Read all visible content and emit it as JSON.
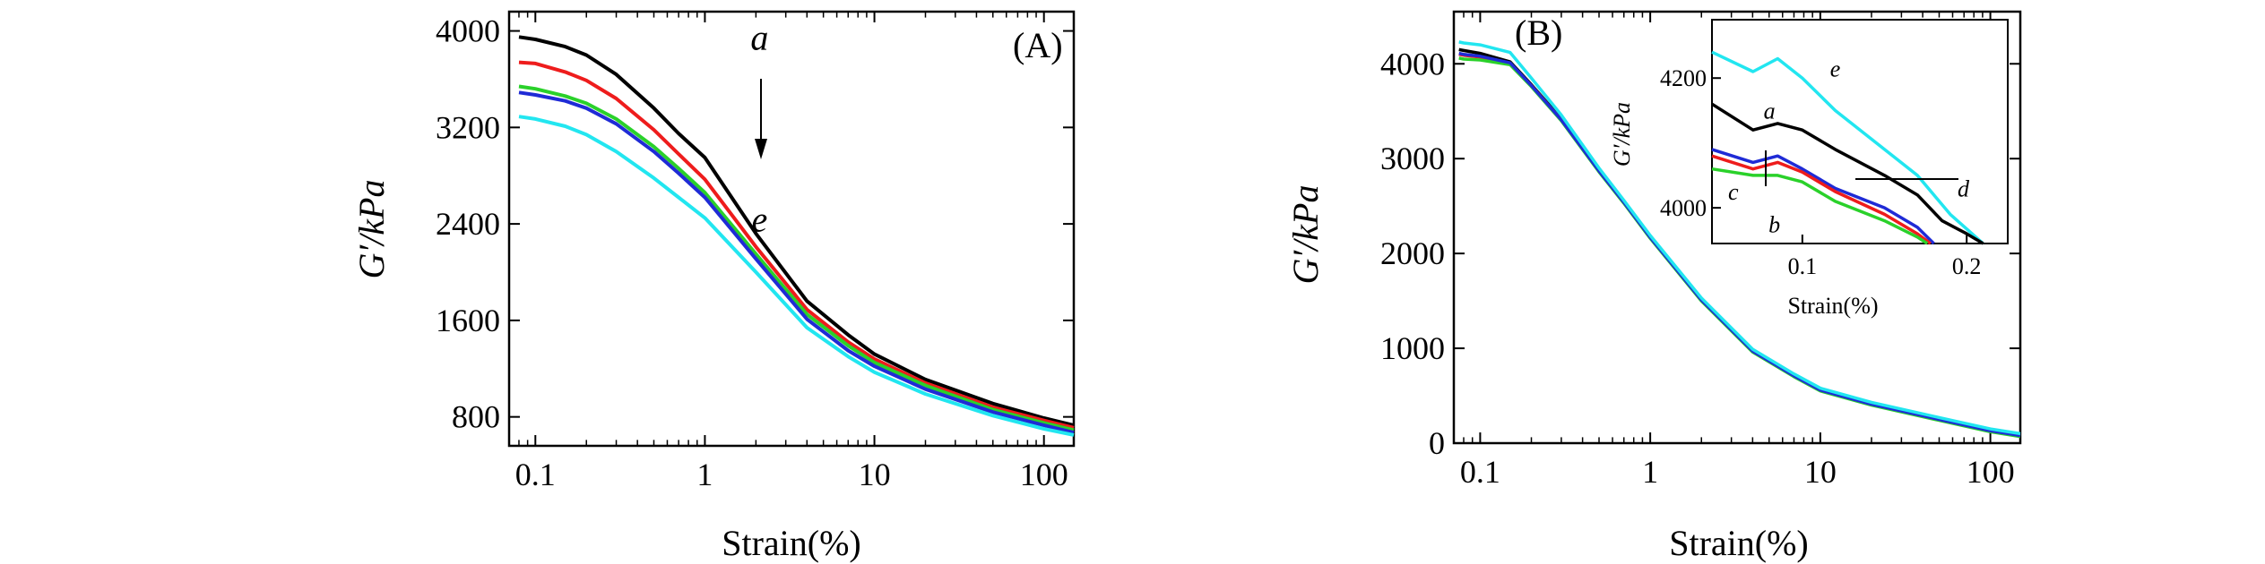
{
  "chart_data": [
    {
      "panel_label": "(A)",
      "type": "line",
      "xlabel": "Strain(%)",
      "ylabel": "G′/kPa",
      "xscale": "log",
      "xlim": [
        0.07,
        150
      ],
      "ylim": [
        560,
        4160
      ],
      "xticks": [
        {
          "value": 0.1,
          "label": "0.1"
        },
        {
          "value": 1,
          "label": "1"
        },
        {
          "value": 10,
          "label": "10"
        },
        {
          "value": 100,
          "label": "100"
        }
      ],
      "yticks": [
        {
          "value": 800,
          "label": "800"
        },
        {
          "value": 1600,
          "label": "1600"
        },
        {
          "value": 2400,
          "label": "2400"
        },
        {
          "value": 3200,
          "label": "3200"
        },
        {
          "value": 4000,
          "label": "4000"
        }
      ],
      "grid": false,
      "legend": "none",
      "series": [
        {
          "color": "#000000",
          "x": [
            0.08,
            0.1,
            0.15,
            0.2,
            0.3,
            0.5,
            0.7,
            1,
            2,
            4,
            7,
            10,
            20,
            50,
            100,
            150
          ],
          "y": [
            3950,
            3930,
            3870,
            3800,
            3640,
            3360,
            3150,
            2950,
            2320,
            1760,
            1480,
            1320,
            1110,
            910,
            790,
            730
          ]
        },
        {
          "color": "#ee1c1c",
          "x": [
            0.08,
            0.1,
            0.15,
            0.2,
            0.3,
            0.5,
            0.7,
            1,
            2,
            4,
            7,
            10,
            20,
            50,
            100,
            150
          ],
          "y": [
            3740,
            3730,
            3660,
            3590,
            3440,
            3180,
            2980,
            2770,
            2210,
            1690,
            1420,
            1280,
            1080,
            880,
            770,
            710
          ]
        },
        {
          "color": "#2ad12a",
          "x": [
            0.08,
            0.1,
            0.15,
            0.2,
            0.3,
            0.5,
            0.7,
            1,
            2,
            4,
            7,
            10,
            20,
            50,
            100,
            150
          ],
          "y": [
            3540,
            3520,
            3460,
            3400,
            3270,
            3040,
            2860,
            2660,
            2150,
            1650,
            1390,
            1250,
            1060,
            860,
            750,
            690
          ]
        },
        {
          "color": "#1f2bd6",
          "x": [
            0.08,
            0.1,
            0.15,
            0.2,
            0.3,
            0.5,
            0.7,
            1,
            2,
            4,
            7,
            10,
            20,
            50,
            100,
            150
          ],
          "y": [
            3490,
            3470,
            3420,
            3360,
            3230,
            3000,
            2820,
            2620,
            2110,
            1610,
            1350,
            1220,
            1030,
            840,
            730,
            670
          ]
        },
        {
          "color": "#22e6f0",
          "x": [
            0.08,
            0.1,
            0.15,
            0.2,
            0.3,
            0.5,
            0.7,
            1,
            2,
            4,
            7,
            10,
            20,
            50,
            100,
            150
          ],
          "y": [
            3290,
            3270,
            3210,
            3140,
            3000,
            2780,
            2620,
            2450,
            2000,
            1540,
            1300,
            1170,
            990,
            810,
            700,
            650
          ]
        }
      ],
      "annotations": [
        {
          "text": "a",
          "x": 2.1,
          "y": 3950
        },
        {
          "text": "e",
          "x": 2.1,
          "y": 2440
        }
      ]
    },
    {
      "panel_label": "(B)",
      "type": "line",
      "xlabel": "Strain(%)",
      "ylabel": "G′/kPa",
      "xscale": "log",
      "xlim": [
        0.07,
        150
      ],
      "ylim": [
        0,
        4550
      ],
      "xticks": [
        {
          "value": 0.1,
          "label": "0.1"
        },
        {
          "value": 1,
          "label": "1"
        },
        {
          "value": 10,
          "label": "10"
        },
        {
          "value": 100,
          "label": "100"
        }
      ],
      "yticks": [
        {
          "value": 0,
          "label": "0"
        },
        {
          "value": 1000,
          "label": "1000"
        },
        {
          "value": 2000,
          "label": "2000"
        },
        {
          "value": 3000,
          "label": "3000"
        },
        {
          "value": 4000,
          "label": "4000"
        }
      ],
      "grid": false,
      "legend": "none",
      "series": [
        {
          "color": "#000000",
          "x": [
            0.075,
            0.08,
            0.1,
            0.15,
            0.2,
            0.3,
            0.5,
            0.7,
            1,
            2,
            4,
            7,
            10,
            20,
            50,
            100,
            150
          ],
          "y": [
            4150,
            4140,
            4110,
            4020,
            3780,
            3420,
            2880,
            2550,
            2180,
            1520,
            980,
            720,
            570,
            420,
            260,
            140,
            90
          ]
        },
        {
          "color": "#ee1c1c",
          "x": [
            0.075,
            0.08,
            0.1,
            0.15,
            0.2,
            0.3,
            0.5,
            0.7,
            1,
            2,
            4,
            7,
            10,
            20,
            50,
            100,
            150
          ],
          "y": [
            4100,
            4090,
            4070,
            4000,
            3770,
            3410,
            2870,
            2540,
            2170,
            1510,
            970,
            710,
            560,
            410,
            250,
            130,
            80
          ]
        },
        {
          "color": "#2ad12a",
          "x": [
            0.075,
            0.08,
            0.1,
            0.15,
            0.2,
            0.3,
            0.5,
            0.7,
            1,
            2,
            4,
            7,
            10,
            20,
            50,
            100,
            150
          ],
          "y": [
            4060,
            4050,
            4040,
            3990,
            3760,
            3400,
            2860,
            2530,
            2160,
            1500,
            960,
            700,
            550,
            400,
            240,
            120,
            70
          ]
        },
        {
          "color": "#1f2bd6",
          "x": [
            0.075,
            0.08,
            0.1,
            0.15,
            0.2,
            0.3,
            0.5,
            0.7,
            1,
            2,
            4,
            7,
            10,
            20,
            50,
            100,
            150
          ],
          "y": [
            4110,
            4100,
            4080,
            4010,
            3770,
            3410,
            2870,
            2540,
            2170,
            1510,
            970,
            710,
            560,
            410,
            250,
            130,
            80
          ]
        },
        {
          "color": "#22e6f0",
          "x": [
            0.075,
            0.08,
            0.1,
            0.15,
            0.2,
            0.3,
            0.5,
            0.7,
            1,
            2,
            4,
            7,
            10,
            20,
            50,
            100,
            150
          ],
          "y": [
            4230,
            4220,
            4200,
            4120,
            3850,
            3460,
            2900,
            2560,
            2190,
            1530,
            990,
            730,
            580,
            430,
            270,
            150,
            100
          ]
        }
      ],
      "inset": {
        "xlabel": "Strain(%)",
        "ylabel": "G′/kPa",
        "xlim": [
          0.045,
          0.225
        ],
        "ylim": [
          3945,
          4290
        ],
        "xticks": [
          {
            "value": 0.1,
            "label": "0.1"
          },
          {
            "value": 0.2,
            "label": "0.2"
          }
        ],
        "yticks": [
          {
            "value": 4000,
            "label": "4000"
          },
          {
            "value": 4200,
            "label": "4200"
          }
        ],
        "series": [
          {
            "color": "#22e6f0",
            "x": [
              0.045,
              0.07,
              0.085,
              0.1,
              0.12,
              0.15,
              0.17,
              0.19,
              0.21
            ],
            "y": [
              4240,
              4210,
              4230,
              4200,
              4150,
              4090,
              4050,
              3990,
              3945
            ]
          },
          {
            "color": "#000000",
            "x": [
              0.045,
              0.07,
              0.085,
              0.1,
              0.12,
              0.15,
              0.17,
              0.185,
              0.2,
              0.21
            ],
            "y": [
              4160,
              4120,
              4130,
              4120,
              4090,
              4050,
              4020,
              3980,
              3960,
              3945
            ]
          },
          {
            "color": "#1f2bd6",
            "x": [
              0.045,
              0.07,
              0.085,
              0.1,
              0.12,
              0.15,
              0.17,
              0.18
            ],
            "y": [
              4090,
              4070,
              4080,
              4060,
              4030,
              4000,
              3970,
              3945
            ]
          },
          {
            "color": "#ee1c1c",
            "x": [
              0.045,
              0.07,
              0.085,
              0.1,
              0.12,
              0.15,
              0.17,
              0.178
            ],
            "y": [
              4080,
              4060,
              4070,
              4055,
              4025,
              3990,
              3960,
              3945
            ]
          },
          {
            "color": "#2ad12a",
            "x": [
              0.045,
              0.07,
              0.085,
              0.1,
              0.12,
              0.15,
              0.17,
              0.176
            ],
            "y": [
              4060,
              4050,
              4050,
              4040,
              4010,
              3980,
              3955,
              3945
            ]
          }
        ],
        "annotations": [
          {
            "text": "e",
            "x": 0.12,
            "y": 4215
          },
          {
            "text": "a",
            "x": 0.08,
            "y": 4150
          },
          {
            "text": "c",
            "x": 0.058,
            "y": 4025
          },
          {
            "text": "b",
            "x": 0.083,
            "y": 3975
          },
          {
            "text": "d",
            "x": 0.198,
            "y": 4030
          }
        ]
      }
    }
  ]
}
